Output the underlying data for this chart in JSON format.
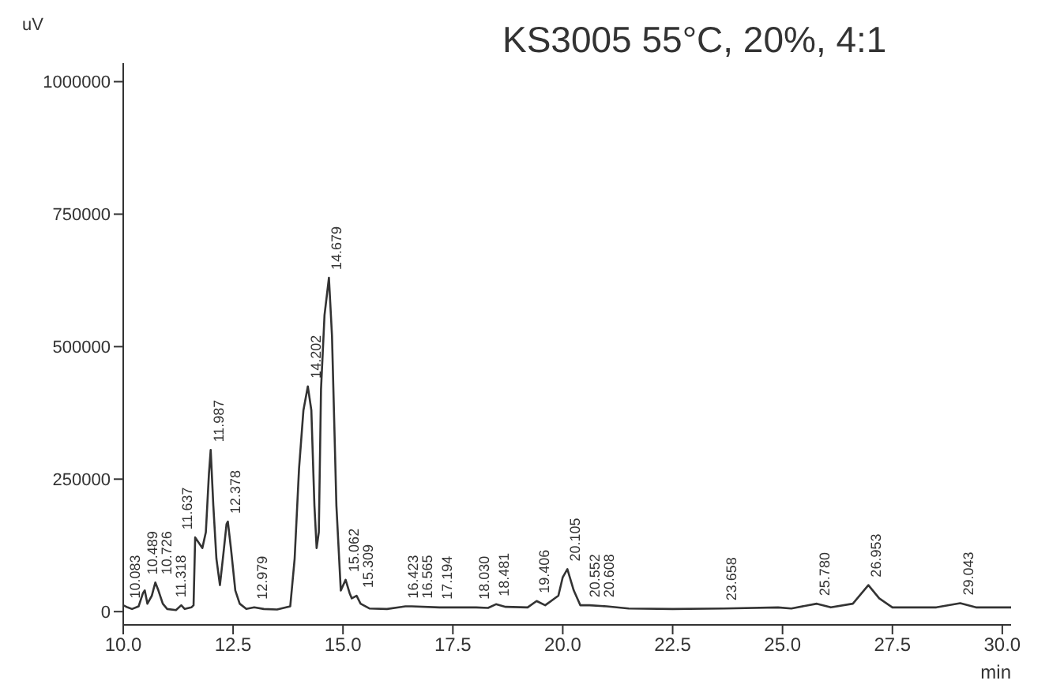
{
  "chart_data": {
    "type": "line",
    "title": "KS3005 55°C, 20%, 4:1",
    "xlabel": "min",
    "ylabel": "uV",
    "xlim": [
      10,
      30.2
    ],
    "ylim": [
      -25000,
      1035000
    ],
    "xticks": [
      {
        "value": 10,
        "label": "10.0"
      },
      {
        "value": 12.5,
        "label": "12.5"
      },
      {
        "value": 15,
        "label": "15.0"
      },
      {
        "value": 17.5,
        "label": "17.5"
      },
      {
        "value": 20,
        "label": "20.0"
      },
      {
        "value": 22.5,
        "label": "22.5"
      },
      {
        "value": 25,
        "label": "25.0"
      },
      {
        "value": 27.5,
        "label": "27.5"
      },
      {
        "value": 30,
        "label": "30.0"
      }
    ],
    "yticks": [
      0,
      250000,
      500000,
      750000,
      1000000
    ],
    "grid": false,
    "legend": false,
    "marker": "none",
    "line_style": "solid",
    "series": [
      {
        "color": "#333333",
        "x": [
          10.0,
          10.1,
          10.2,
          10.35,
          10.45,
          10.49,
          10.55,
          10.65,
          10.73,
          10.8,
          10.9,
          11.0,
          11.2,
          11.32,
          11.4,
          11.55,
          11.6,
          11.637,
          11.8,
          11.88,
          11.95,
          11.99,
          12.05,
          12.12,
          12.2,
          12.28,
          12.35,
          12.38,
          12.45,
          12.55,
          12.65,
          12.8,
          12.98,
          13.2,
          13.5,
          13.8,
          13.9,
          14.0,
          14.1,
          14.2,
          14.28,
          14.35,
          14.4,
          14.45,
          14.5,
          14.58,
          14.68,
          14.75,
          14.85,
          14.95,
          15.06,
          15.15,
          15.2,
          15.31,
          15.4,
          15.6,
          16.0,
          16.42,
          16.565,
          17.194,
          18.03,
          18.3,
          18.481,
          18.7,
          19.2,
          19.406,
          19.6,
          19.9,
          20.0,
          20.105,
          20.25,
          20.4,
          20.608,
          21.0,
          21.5,
          22.5,
          23.658,
          24.9,
          25.2,
          25.78,
          26.1,
          26.6,
          26.953,
          27.2,
          27.5,
          28.5,
          29.043,
          29.4,
          30.2
        ],
        "values": [
          12000,
          8000,
          5000,
          10000,
          35000,
          40000,
          15000,
          30000,
          55000,
          40000,
          15000,
          5000,
          3000,
          12000,
          5000,
          8000,
          12000,
          140000,
          120000,
          150000,
          260000,
          305000,
          200000,
          100000,
          50000,
          110000,
          165000,
          170000,
          120000,
          40000,
          15000,
          5000,
          8000,
          5000,
          4000,
          10000,
          100000,
          270000,
          380000,
          425000,
          380000,
          200000,
          120000,
          150000,
          420000,
          560000,
          630000,
          520000,
          200000,
          40000,
          60000,
          35000,
          25000,
          30000,
          15000,
          6000,
          5000,
          10000,
          10000,
          8000,
          8000,
          7000,
          14000,
          9000,
          8000,
          20000,
          12000,
          30000,
          65000,
          80000,
          40000,
          12000,
          12000,
          10000,
          6000,
          5000,
          6000,
          8000,
          6000,
          15000,
          8000,
          15000,
          50000,
          25000,
          8000,
          8000,
          16000,
          8000,
          8000
        ]
      }
    ],
    "annotations": [
      {
        "text": "10.083",
        "x": 10.083,
        "y": 8000
      },
      {
        "text": "10.489",
        "x": 10.489,
        "y": 40000
      },
      {
        "text": "10.726",
        "x": 10.726,
        "y": 55000
      },
      {
        "text": "11.318",
        "x": 11.318,
        "y": 12000
      },
      {
        "text": "11.637",
        "x": 11.637,
        "y": 140000
      },
      {
        "text": "11.987",
        "x": 11.987,
        "y": 305000
      },
      {
        "text": "12.378",
        "x": 12.378,
        "y": 170000
      },
      {
        "text": "12.979",
        "x": 12.979,
        "y": 8000
      },
      {
        "text": "14.202",
        "x": 14.202,
        "y": 425000
      },
      {
        "text": "14.679",
        "x": 14.679,
        "y": 630000
      },
      {
        "text": "15.062",
        "x": 15.062,
        "y": 60000
      },
      {
        "text": "15.309",
        "x": 15.309,
        "y": 30000
      },
      {
        "text": "16.423",
        "x": 16.423,
        "y": 10000
      },
      {
        "text": "16.565",
        "x": 16.565,
        "y": 10000
      },
      {
        "text": "17.194",
        "x": 17.194,
        "y": 8000
      },
      {
        "text": "18.030",
        "x": 18.03,
        "y": 8000
      },
      {
        "text": "18.481",
        "x": 18.481,
        "y": 14000
      },
      {
        "text": "19.406",
        "x": 19.406,
        "y": 20000
      },
      {
        "text": "20.105",
        "x": 20.105,
        "y": 80000
      },
      {
        "text": "20.552",
        "x": 20.552,
        "y": 12000
      },
      {
        "text": "20.608",
        "x": 20.608,
        "y": 12000
      },
      {
        "text": "23.658",
        "x": 23.658,
        "y": 6000
      },
      {
        "text": "25.780",
        "x": 25.78,
        "y": 15000
      },
      {
        "text": "26.953",
        "x": 26.953,
        "y": 50000
      },
      {
        "text": "29.043",
        "x": 29.043,
        "y": 16000
      }
    ]
  }
}
